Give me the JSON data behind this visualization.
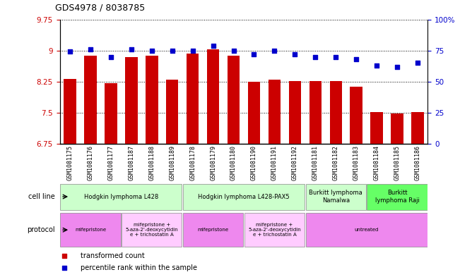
{
  "title": "GDS4978 / 8038785",
  "samples": [
    "GSM1081175",
    "GSM1081176",
    "GSM1081177",
    "GSM1081187",
    "GSM1081188",
    "GSM1081189",
    "GSM1081178",
    "GSM1081179",
    "GSM1081180",
    "GSM1081190",
    "GSM1081191",
    "GSM1081192",
    "GSM1081181",
    "GSM1081182",
    "GSM1081183",
    "GSM1081184",
    "GSM1081185",
    "GSM1081186"
  ],
  "bar_values": [
    8.32,
    8.87,
    8.22,
    8.85,
    8.87,
    8.3,
    8.92,
    9.03,
    8.88,
    8.25,
    8.3,
    8.27,
    8.27,
    8.27,
    8.13,
    7.52,
    7.48,
    7.52
  ],
  "dot_values": [
    74,
    76,
    70,
    76,
    75,
    75,
    75,
    79,
    75,
    72,
    75,
    72,
    70,
    70,
    68,
    63,
    62,
    65
  ],
  "bar_color": "#cc0000",
  "dot_color": "#0000cc",
  "ylim_left": [
    6.75,
    9.75
  ],
  "ylim_right": [
    0,
    100
  ],
  "yticks_left": [
    6.75,
    7.5,
    8.25,
    9.0,
    9.75
  ],
  "ytick_labels_left": [
    "6.75",
    "7.5",
    "8.25",
    "9",
    "9.75"
  ],
  "yticks_right": [
    0,
    25,
    50,
    75,
    100
  ],
  "ytick_labels_right": [
    "0",
    "25",
    "50",
    "75",
    "100%"
  ],
  "cell_line_groups": [
    {
      "label": "Hodgkin lymphoma L428",
      "start": 0,
      "end": 6,
      "color": "#ccffcc"
    },
    {
      "label": "Hodgkin lymphoma L428-PAX5",
      "start": 6,
      "end": 12,
      "color": "#ccffcc"
    },
    {
      "label": "Burkitt lymphoma\nNamalwa",
      "start": 12,
      "end": 15,
      "color": "#ccffcc"
    },
    {
      "label": "Burkitt\nlymphoma Raji",
      "start": 15,
      "end": 18,
      "color": "#66ff66"
    }
  ],
  "protocol_groups": [
    {
      "label": "mifepristone",
      "start": 0,
      "end": 3,
      "color": "#ee88ee"
    },
    {
      "label": "mifepristone +\n5-aza-2'-deoxycytidin\ne + trichostatin A",
      "start": 3,
      "end": 6,
      "color": "#ffccff"
    },
    {
      "label": "mifepristone",
      "start": 6,
      "end": 9,
      "color": "#ee88ee"
    },
    {
      "label": "mifepristone +\n5-aza-2'-deoxycytidin\ne + trichostatin A",
      "start": 9,
      "end": 12,
      "color": "#ffccff"
    },
    {
      "label": "untreated",
      "start": 12,
      "end": 18,
      "color": "#ee88ee"
    }
  ],
  "legend_items": [
    {
      "label": "transformed count",
      "color": "#cc0000",
      "marker": "s"
    },
    {
      "label": "percentile rank within the sample",
      "color": "#0000cc",
      "marker": "s"
    }
  ],
  "bg_color": "#f0f0f0"
}
